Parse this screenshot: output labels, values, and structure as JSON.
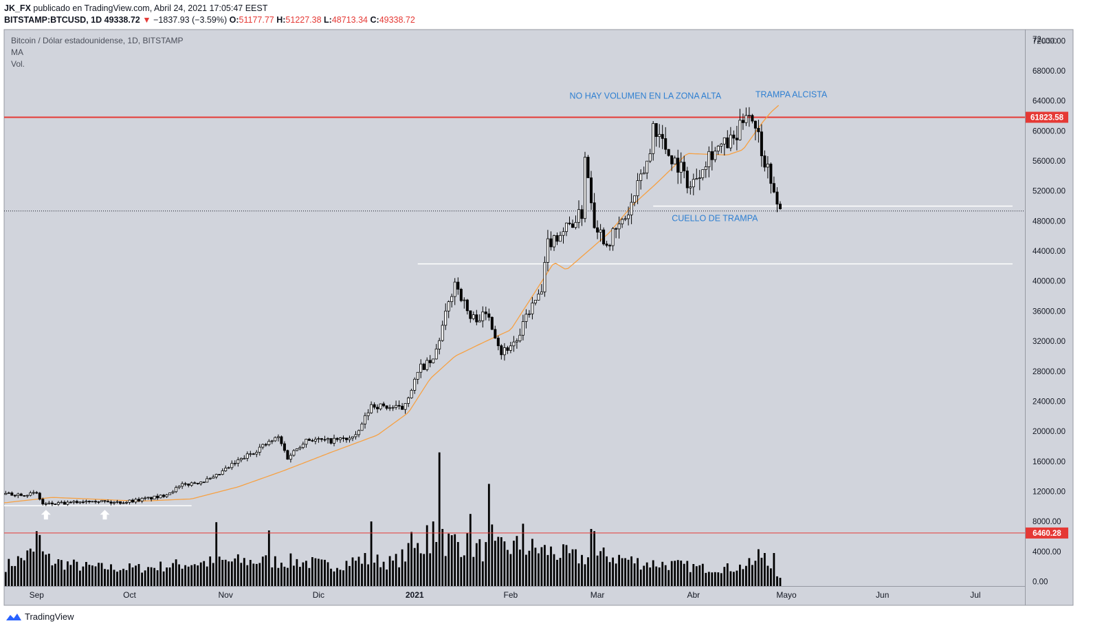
{
  "header": {
    "publisher": "JK_FX",
    "publish_text": "publicado en TradingView.com, Abril 24, 2021 17:05:47 EEST",
    "symbol": "BITSTAMP:BTCUSD, 1D",
    "last": "49338.72",
    "change_arrow": "▼",
    "change": "−1837.93 (−3.59%)",
    "o_label": "O:",
    "o": "51177.77",
    "h_label": "H:",
    "h": "51227.38",
    "l_label": "L:",
    "l": "48713.34",
    "c_label": "C:",
    "c": "49338.72"
  },
  "legend": {
    "title": "Bitcoin / Dólar estadounidense, 1D, BITSTAMP",
    "ma": "MA",
    "vol": "Vol."
  },
  "footer": {
    "brand": "TradingView"
  },
  "colors": {
    "panel_bg": "#d1d4dc",
    "candle": "#000000",
    "ma": "#f7a041",
    "hline_red": "#e53935",
    "annotation": "#2e7fd1",
    "white_line": "#ffffff"
  },
  "chart_data": {
    "type": "candlestick",
    "title": "Bitcoin / Dólar estadounidense, 1D, BITSTAMP",
    "currency": "USD",
    "price_ylim": [
      -600,
      73500
    ],
    "y_ticks": [
      72000,
      68000,
      64000,
      60000,
      56000,
      52000,
      48000,
      44000,
      40000,
      36000,
      32000,
      28000,
      24000,
      20000,
      16000,
      12000,
      8000,
      4000,
      0
    ],
    "y_tick_labels": [
      "72000.00",
      "68000.00",
      "64000.00",
      "60000.00",
      "56000.00",
      "52000.00",
      "48000.00",
      "44000.00",
      "40000.00",
      "36000.00",
      "32000.00",
      "28000.00",
      "24000.00",
      "20000.00",
      "16000.00",
      "12000.00",
      "8000.00",
      "4000.00",
      "0.00"
    ],
    "y_top_partial": "72",
    "x_labels": [
      {
        "label": "Sep",
        "day": 5
      },
      {
        "label": "Oct",
        "day": 35
      },
      {
        "label": "Nov",
        "day": 66
      },
      {
        "label": "Dic",
        "day": 96
      },
      {
        "label": "2021",
        "day": 127
      },
      {
        "label": "Feb",
        "day": 158
      },
      {
        "label": "Mar",
        "day": 186
      },
      {
        "label": "Abr",
        "day": 217
      },
      {
        "label": "Mayo",
        "day": 247
      },
      {
        "label": "Jun",
        "day": 278
      },
      {
        "label": "Jul",
        "day": 308
      }
    ],
    "x_range_days": [
      -5.5,
      324
    ],
    "last_candle_day": 245,
    "price_anchors": [
      [
        -5,
        11600
      ],
      [
        5,
        11700
      ],
      [
        7,
        10300
      ],
      [
        15,
        10400
      ],
      [
        23,
        10900
      ],
      [
        29,
        10500
      ],
      [
        33,
        10600
      ],
      [
        45,
        11300
      ],
      [
        52,
        12800
      ],
      [
        62,
        13700
      ],
      [
        68,
        15500
      ],
      [
        77,
        17800
      ],
      [
        83,
        19200
      ],
      [
        86,
        16500
      ],
      [
        92,
        19000
      ],
      [
        99,
        18700
      ],
      [
        108,
        19200
      ],
      [
        113,
        23500
      ],
      [
        123,
        23000
      ],
      [
        129,
        28500
      ],
      [
        133,
        29300
      ],
      [
        140,
        40000
      ],
      [
        145,
        35000
      ],
      [
        151,
        35500
      ],
      [
        155,
        30500
      ],
      [
        161,
        32500
      ],
      [
        163,
        35500
      ],
      [
        168,
        38500
      ],
      [
        170,
        45000
      ],
      [
        177,
        47500
      ],
      [
        181,
        49000
      ],
      [
        182,
        57000
      ],
      [
        185,
        48000
      ],
      [
        189,
        45000
      ],
      [
        196,
        49000
      ],
      [
        203,
        57000
      ],
      [
        204,
        61000
      ],
      [
        209,
        57000
      ],
      [
        213,
        55000
      ],
      [
        216,
        52500
      ],
      [
        222,
        57000
      ],
      [
        231,
        59000
      ],
      [
        234,
        63000
      ],
      [
        237,
        61000
      ],
      [
        240,
        56000
      ],
      [
        242,
        54000
      ],
      [
        243,
        51177
      ],
      [
        245,
        49339
      ]
    ],
    "volume_anchors": [
      [
        -5,
        2300
      ],
      [
        5,
        4500
      ],
      [
        10,
        3000
      ],
      [
        20,
        2200
      ],
      [
        30,
        2000
      ],
      [
        40,
        2000
      ],
      [
        55,
        2700
      ],
      [
        70,
        3000
      ],
      [
        80,
        3000
      ],
      [
        90,
        3000
      ],
      [
        100,
        2300
      ],
      [
        110,
        3300
      ],
      [
        120,
        2800
      ],
      [
        128,
        5000
      ],
      [
        133,
        5500
      ],
      [
        140,
        6000
      ],
      [
        150,
        4500
      ],
      [
        160,
        5200
      ],
      [
        170,
        4500
      ],
      [
        180,
        3500
      ],
      [
        190,
        3800
      ],
      [
        200,
        2800
      ],
      [
        210,
        2500
      ],
      [
        220,
        2000
      ],
      [
        230,
        2000
      ],
      [
        240,
        3000
      ],
      [
        245,
        700
      ]
    ],
    "volume_spikes": [
      [
        5,
        6700
      ],
      [
        6,
        6200
      ],
      [
        63,
        7900
      ],
      [
        80,
        6800
      ],
      [
        113,
        8000
      ],
      [
        126,
        6600
      ],
      [
        131,
        7500
      ],
      [
        133,
        8000
      ],
      [
        135,
        17200
      ],
      [
        136,
        7000
      ],
      [
        145,
        9000
      ],
      [
        151,
        13000
      ],
      [
        152,
        7600
      ],
      [
        162,
        7700
      ],
      [
        184,
        7000
      ],
      [
        185,
        6700
      ],
      [
        238,
        4300
      ],
      [
        240,
        3800
      ],
      [
        243,
        3800
      ]
    ],
    "ma_anchors": [
      [
        -5,
        10500
      ],
      [
        10,
        11200
      ],
      [
        22,
        11000
      ],
      [
        38,
        10700
      ],
      [
        55,
        11000
      ],
      [
        70,
        12600
      ],
      [
        85,
        14800
      ],
      [
        100,
        17200
      ],
      [
        115,
        19500
      ],
      [
        125,
        22500
      ],
      [
        132,
        27000
      ],
      [
        140,
        30000
      ],
      [
        150,
        32000
      ],
      [
        158,
        33500
      ],
      [
        165,
        38000
      ],
      [
        172,
        42500
      ],
      [
        176,
        41500
      ],
      [
        183,
        44000
      ],
      [
        190,
        46500
      ],
      [
        197,
        50000
      ],
      [
        205,
        53000
      ],
      [
        215,
        57000
      ],
      [
        228,
        56800
      ],
      [
        233,
        57500
      ],
      [
        239,
        61000
      ],
      [
        242,
        62500
      ],
      [
        245,
        63600
      ]
    ],
    "hlines": [
      {
        "price": 61823.58,
        "label": "61823.58",
        "style": "red",
        "width": 2
      },
      {
        "price": 6460.28,
        "label": "6460.28",
        "style": "red",
        "width": 1
      },
      {
        "price": 49338.72,
        "label": "",
        "style": "dotted",
        "width": 1
      },
      {
        "price": 50000,
        "label": "",
        "style": "white",
        "from_day": 204,
        "to_day": 320
      },
      {
        "price": 42300,
        "label": "",
        "style": "white",
        "from_day": 128,
        "to_day": 320
      },
      {
        "price": 10100,
        "label": "",
        "style": "white",
        "from_day": -5.5,
        "to_day": 55
      }
    ],
    "arrows": [
      {
        "day": 8,
        "price": 9000
      },
      {
        "day": 27,
        "price": 9000
      }
    ],
    "annotations": [
      {
        "text": "NO HAY VOLUMEN EN LA ZONA ALTA",
        "day": 177,
        "price": 64300
      },
      {
        "text": "TRAMPA ALCISTA",
        "day": 237,
        "price": 64500
      },
      {
        "text": "CUELLO DE TRAMPA",
        "day": 210,
        "price": 48000
      }
    ]
  }
}
